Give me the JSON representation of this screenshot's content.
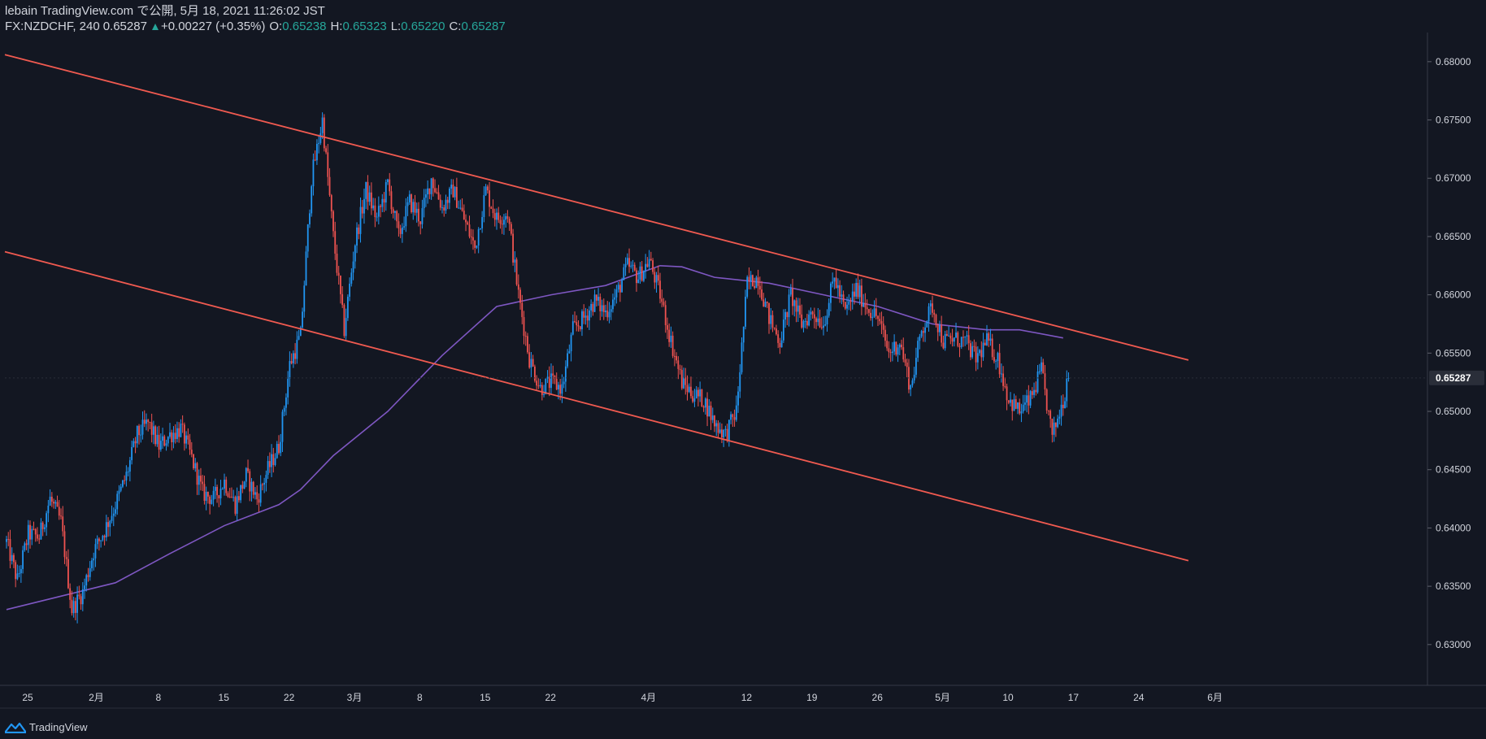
{
  "header": {
    "line1": "lebain TradingView.com で公開, 5月 18, 2021 11:26:02 JST",
    "symbol": "FX:NZDCHF, 240",
    "last": "0.65287",
    "change": "+0.00227 (+0.35%)",
    "o_label": "O:",
    "o": "0.65238",
    "h_label": "H:",
    "h": "0.65323",
    "l_label": "L:",
    "l": "0.65220",
    "c_label": "C:",
    "c": "0.65287"
  },
  "footer": {
    "brand": "TradingView"
  },
  "colors": {
    "background": "#131722",
    "up": "#2196f3",
    "down": "#ef5350",
    "channel": "#f05a50",
    "ma": "#7e57c2",
    "axis_text": "#d1d4dc",
    "price_badge": "#2a2e39"
  },
  "chart_data": {
    "type": "candlestick",
    "title": "FX:NZDCHF, 240",
    "ylim": [
      0.6265,
      0.6825
    ],
    "y_ticks": [
      "0.68000",
      "0.67500",
      "0.67000",
      "0.66500",
      "0.66000",
      "0.65500",
      "0.65000",
      "0.64500",
      "0.64000",
      "0.63500",
      "0.63000"
    ],
    "x_ticks": [
      "25",
      "2月",
      "8",
      "15",
      "22",
      "3月",
      "8",
      "15",
      "22",
      "4月",
      "12",
      "19",
      "26",
      "5月",
      "10",
      "17",
      "24",
      "6月"
    ],
    "current_price_label": "0.65287",
    "price_path": [
      {
        "d": 0,
        "p": 0.6388
      },
      {
        "d": 1,
        "p": 0.6355
      },
      {
        "d": 2,
        "p": 0.6395
      },
      {
        "d": 3,
        "p": 0.6392
      },
      {
        "d": 4,
        "p": 0.6425
      },
      {
        "d": 5,
        "p": 0.6405
      },
      {
        "d": 6,
        "p": 0.633
      },
      {
        "d": 7,
        "p": 0.6345
      },
      {
        "d": 8,
        "p": 0.638
      },
      {
        "d": 9,
        "p": 0.6398
      },
      {
        "d": 10,
        "p": 0.642
      },
      {
        "d": 11,
        "p": 0.6445
      },
      {
        "d": 12,
        "p": 0.648
      },
      {
        "d": 13,
        "p": 0.649
      },
      {
        "d": 14,
        "p": 0.647
      },
      {
        "d": 15,
        "p": 0.648
      },
      {
        "d": 16,
        "p": 0.6485
      },
      {
        "d": 17,
        "p": 0.646
      },
      {
        "d": 18,
        "p": 0.643
      },
      {
        "d": 19,
        "p": 0.6425
      },
      {
        "d": 20,
        "p": 0.644
      },
      {
        "d": 21,
        "p": 0.642
      },
      {
        "d": 22,
        "p": 0.6445
      },
      {
        "d": 23,
        "p": 0.6425
      },
      {
        "d": 24,
        "p": 0.645
      },
      {
        "d": 25,
        "p": 0.647
      },
      {
        "d": 26,
        "p": 0.654
      },
      {
        "d": 27,
        "p": 0.6565
      },
      {
        "d": 28,
        "p": 0.67
      },
      {
        "d": 29,
        "p": 0.675
      },
      {
        "d": 30,
        "p": 0.665
      },
      {
        "d": 31,
        "p": 0.657
      },
      {
        "d": 32,
        "p": 0.6645
      },
      {
        "d": 33,
        "p": 0.669
      },
      {
        "d": 34,
        "p": 0.6665
      },
      {
        "d": 35,
        "p": 0.6695
      },
      {
        "d": 36,
        "p": 0.665
      },
      {
        "d": 37,
        "p": 0.668
      },
      {
        "d": 38,
        "p": 0.6665
      },
      {
        "d": 39,
        "p": 0.67
      },
      {
        "d": 40,
        "p": 0.6675
      },
      {
        "d": 41,
        "p": 0.669
      },
      {
        "d": 42,
        "p": 0.6665
      },
      {
        "d": 43,
        "p": 0.664
      },
      {
        "d": 44,
        "p": 0.669
      },
      {
        "d": 45,
        "p": 0.6665
      },
      {
        "d": 46,
        "p": 0.667
      },
      {
        "d": 47,
        "p": 0.66
      },
      {
        "d": 48,
        "p": 0.6545
      },
      {
        "d": 49,
        "p": 0.652
      },
      {
        "d": 50,
        "p": 0.6525
      },
      {
        "d": 51,
        "p": 0.652
      },
      {
        "d": 52,
        "p": 0.657
      },
      {
        "d": 53,
        "p": 0.658
      },
      {
        "d": 54,
        "p": 0.6595
      },
      {
        "d": 55,
        "p": 0.6585
      },
      {
        "d": 56,
        "p": 0.66
      },
      {
        "d": 57,
        "p": 0.6625
      },
      {
        "d": 58,
        "p": 0.6615
      },
      {
        "d": 59,
        "p": 0.663
      },
      {
        "d": 60,
        "p": 0.66
      },
      {
        "d": 61,
        "p": 0.656
      },
      {
        "d": 62,
        "p": 0.6525
      },
      {
        "d": 63,
        "p": 0.6515
      },
      {
        "d": 64,
        "p": 0.651
      },
      {
        "d": 65,
        "p": 0.649
      },
      {
        "d": 66,
        "p": 0.648
      },
      {
        "d": 67,
        "p": 0.65
      },
      {
        "d": 68,
        "p": 0.661
      },
      {
        "d": 69,
        "p": 0.6615
      },
      {
        "d": 70,
        "p": 0.658
      },
      {
        "d": 71,
        "p": 0.656
      },
      {
        "d": 72,
        "p": 0.66
      },
      {
        "d": 73,
        "p": 0.6575
      },
      {
        "d": 74,
        "p": 0.6585
      },
      {
        "d": 75,
        "p": 0.6575
      },
      {
        "d": 76,
        "p": 0.6615
      },
      {
        "d": 77,
        "p": 0.6585
      },
      {
        "d": 78,
        "p": 0.6605
      },
      {
        "d": 79,
        "p": 0.659
      },
      {
        "d": 80,
        "p": 0.658
      },
      {
        "d": 81,
        "p": 0.655
      },
      {
        "d": 82,
        "p": 0.656
      },
      {
        "d": 83,
        "p": 0.652
      },
      {
        "d": 84,
        "p": 0.657
      },
      {
        "d": 85,
        "p": 0.659
      },
      {
        "d": 86,
        "p": 0.656
      },
      {
        "d": 87,
        "p": 0.6562
      },
      {
        "d": 88,
        "p": 0.656
      },
      {
        "d": 89,
        "p": 0.6545
      },
      {
        "d": 90,
        "p": 0.656
      },
      {
        "d": 91,
        "p": 0.6545
      },
      {
        "d": 92,
        "p": 0.651
      },
      {
        "d": 93,
        "p": 0.65
      },
      {
        "d": 94,
        "p": 0.651
      },
      {
        "d": 95,
        "p": 0.6535
      },
      {
        "d": 96,
        "p": 0.6478
      },
      {
        "d": 97,
        "p": 0.651
      },
      {
        "d": 97.5,
        "p": 0.6529
      }
    ],
    "moving_average": [
      {
        "d": 0,
        "p": 0.633
      },
      {
        "d": 10,
        "p": 0.6353
      },
      {
        "d": 15,
        "p": 0.6378
      },
      {
        "d": 20,
        "p": 0.6402
      },
      {
        "d": 25,
        "p": 0.642
      },
      {
        "d": 27,
        "p": 0.6433
      },
      {
        "d": 30,
        "p": 0.6462
      },
      {
        "d": 35,
        "p": 0.65
      },
      {
        "d": 40,
        "p": 0.6548
      },
      {
        "d": 45,
        "p": 0.659
      },
      {
        "d": 50,
        "p": 0.66
      },
      {
        "d": 55,
        "p": 0.6608
      },
      {
        "d": 60,
        "p": 0.6625
      },
      {
        "d": 62,
        "p": 0.6624
      },
      {
        "d": 65,
        "p": 0.6615
      },
      {
        "d": 70,
        "p": 0.661
      },
      {
        "d": 75,
        "p": 0.66
      },
      {
        "d": 80,
        "p": 0.659
      },
      {
        "d": 85,
        "p": 0.6575
      },
      {
        "d": 90,
        "p": 0.657
      },
      {
        "d": 93,
        "p": 0.657
      },
      {
        "d": 97,
        "p": 0.6563
      }
    ],
    "channel": {
      "upper": [
        {
          "d": 0,
          "p": 0.6806
        },
        {
          "d": 108.5,
          "p": 0.6544
        }
      ],
      "lower": [
        {
          "d": 0,
          "p": 0.6637
        },
        {
          "d": 108.5,
          "p": 0.6372
        }
      ]
    }
  }
}
